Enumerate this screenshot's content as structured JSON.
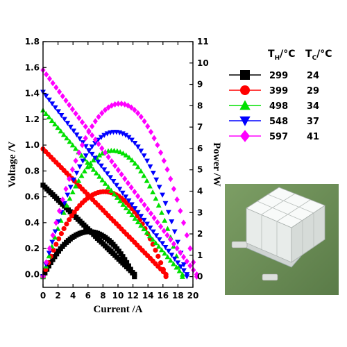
{
  "chart_data": {
    "type": "scatter",
    "title": "",
    "xlabel": "Current /A",
    "ylabel_left": "Voltage /V",
    "ylabel_right": "Power /W",
    "xlim": [
      0,
      20
    ],
    "ylim_left": [
      -0.1,
      1.8
    ],
    "ylim_right": [
      -0.5,
      11
    ],
    "x_ticks": [
      "0",
      "2",
      "4",
      "6",
      "8",
      "10",
      "12",
      "14",
      "16",
      "18",
      "20"
    ],
    "y_left_ticks": [
      "0.0",
      "0.2",
      "0.4",
      "0.6",
      "0.8",
      "1.0",
      "1.2",
      "1.4",
      "1.6",
      "1.8"
    ],
    "y_right_ticks": [
      "0",
      "1",
      "2",
      "3",
      "4",
      "5",
      "6",
      "7",
      "8",
      "9",
      "10",
      "11"
    ],
    "grid": false,
    "legend_position": "top-right",
    "legend_header": {
      "th": "T",
      "th_sub": "H",
      "th_unit": "/°C",
      "tc": "T",
      "tc_sub": "C",
      "tc_unit": "/°C"
    },
    "series": [
      {
        "th": "299",
        "tc": "24",
        "color": "#000000",
        "marker": "square",
        "voc": 0.69,
        "isc": 12.2
      },
      {
        "th": "399",
        "tc": "29",
        "color": "#ff0000",
        "marker": "circle",
        "voc": 0.97,
        "isc": 16.4
      },
      {
        "th": "498",
        "tc": "34",
        "color": "#00e000",
        "marker": "triangle-up",
        "voc": 1.27,
        "isc": 18.6
      },
      {
        "th": "548",
        "tc": "37",
        "color": "#0000ff",
        "marker": "triangle-down",
        "voc": 1.41,
        "isc": 19.2
      },
      {
        "th": "597",
        "tc": "41",
        "color": "#ff00ff",
        "marker": "diamond",
        "voc": 1.58,
        "isc": 20.5
      }
    ]
  },
  "photo": {
    "name": "thermoelectric module photo"
  }
}
